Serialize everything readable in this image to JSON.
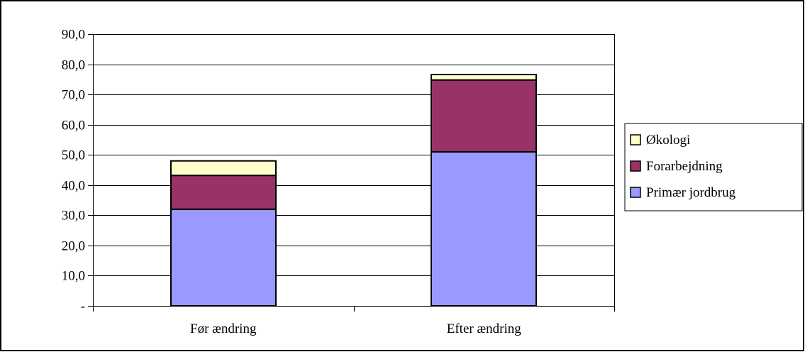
{
  "chart_data": {
    "type": "bar",
    "stacked": true,
    "categories": [
      "Før ændring",
      "Efter ændring"
    ],
    "series": [
      {
        "name": "Primær jordbrug",
        "values": [
          32.0,
          51.0
        ],
        "color": "#9999ff"
      },
      {
        "name": "Forarbejdning",
        "values": [
          11.2,
          23.8
        ],
        "color": "#993366"
      },
      {
        "name": "Økologi",
        "values": [
          4.8,
          1.8
        ],
        "color": "#ffffcc"
      }
    ],
    "ylim": [
      0,
      90
    ],
    "yticks": [
      0,
      10,
      20,
      30,
      40,
      50,
      60,
      70,
      80,
      90
    ],
    "ytick_labels": [
      "-",
      "10,0",
      "20,0",
      "30,0",
      "40,0",
      "50,0",
      "60,0",
      "70,0",
      "80,0",
      "90,0"
    ],
    "legend_order": [
      "Økologi",
      "Forarbejdning",
      "Primær jordbrug"
    ],
    "legend_position": "right",
    "grid": true,
    "grid_color": "#000000",
    "title": "",
    "xlabel": "",
    "ylabel": ""
  }
}
